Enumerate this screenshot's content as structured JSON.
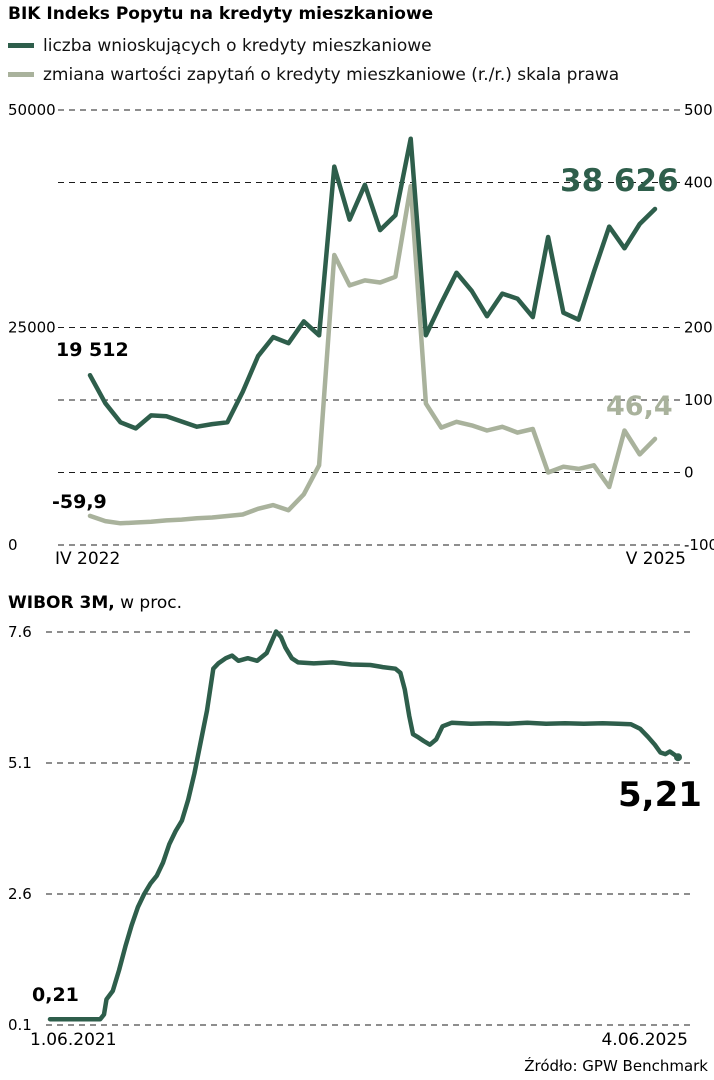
{
  "source": "Źródło: GPW Benchmark",
  "chart_data": [
    {
      "type": "line",
      "title": "BIK Indeks Popytu na kredyty mieszkaniowe",
      "legend": [
        {
          "label": "liczba wnioskujących o kredyty mieszkaniowe",
          "color": "#2e5e4b"
        },
        {
          "label": "zmiana wartości zapytań o kredyty mieszkaniowe (r./r.) skala prawa",
          "color": "#a9b29c"
        }
      ],
      "x_axis": {
        "start": "IV 2022",
        "end": "V 2025"
      },
      "left_axis": {
        "min": 0,
        "max": 50000,
        "ticks": [
          {
            "value": 50000,
            "label": "50000"
          },
          {
            "value": 25000,
            "label": "25000"
          },
          {
            "value": 0,
            "label": "0"
          }
        ]
      },
      "right_axis": {
        "min": -100,
        "max": 500,
        "ticks": [
          {
            "value": 500,
            "label": "500"
          },
          {
            "value": 400,
            "label": "400"
          },
          {
            "value": 200,
            "label": "200"
          },
          {
            "value": 100,
            "label": "100"
          },
          {
            "value": 0,
            "label": "0"
          },
          {
            "value": -100,
            "label": "-100"
          }
        ]
      },
      "series": [
        {
          "name": "liczba wnioskujących o kredyty mieszkaniowe",
          "axis": "left",
          "color": "#2e5e4b",
          "values": [
            19512,
            16300,
            14100,
            13400,
            14900,
            14800,
            14200,
            13600,
            13900,
            14100,
            17600,
            21700,
            23900,
            23200,
            25700,
            24100,
            43500,
            37400,
            41400,
            36200,
            37900,
            46700,
            24100,
            27800,
            31300,
            29200,
            26300,
            28900,
            28300,
            26200,
            35400,
            26700,
            25900,
            31400,
            36600,
            34100,
            36900,
            38626
          ]
        },
        {
          "name": "zmiana wartości zapytań o kredyty mieszkaniowe (r./r.)",
          "axis": "right",
          "color": "#a9b29c",
          "values": [
            -59.9,
            -67,
            -70,
            -69,
            -68,
            -66,
            -65,
            -63,
            -62,
            -60,
            -58,
            -50,
            -45,
            -52,
            -30,
            10,
            300,
            258,
            265,
            262,
            270,
            395,
            95,
            62,
            70,
            65,
            58,
            63,
            55,
            60,
            0,
            8,
            5,
            10,
            -20,
            58,
            25,
            46.4
          ]
        }
      ],
      "annotations": {
        "series1_start": "19 512",
        "series1_end": "38 626",
        "series2_start": "-59,9",
        "series2_end": "46,4"
      }
    },
    {
      "type": "line",
      "title": "WIBOR 3M,",
      "title_suffix": " w proc.",
      "x_axis": {
        "start": "1.06.2021",
        "end": "4.06.2025"
      },
      "y_axis": {
        "min": 0.1,
        "max": 7.6,
        "ticks": [
          {
            "value": 7.6,
            "label": "7.6"
          },
          {
            "value": 5.1,
            "label": "5.1"
          },
          {
            "value": 2.6,
            "label": "2.6"
          },
          {
            "value": 0.1,
            "label": "0.1"
          }
        ]
      },
      "series": [
        {
          "name": "WIBOR 3M",
          "color": "#2e5e4b",
          "points": [
            [
              0,
              0.21
            ],
            [
              0.04,
              0.21
            ],
            [
              0.08,
              0.21
            ],
            [
              0.086,
              0.3
            ],
            [
              0.09,
              0.59
            ],
            [
              0.1,
              0.75
            ],
            [
              0.11,
              1.15
            ],
            [
              0.12,
              1.6
            ],
            [
              0.13,
              2.0
            ],
            [
              0.14,
              2.35
            ],
            [
              0.15,
              2.6
            ],
            [
              0.16,
              2.8
            ],
            [
              0.17,
              2.95
            ],
            [
              0.18,
              3.2
            ],
            [
              0.19,
              3.55
            ],
            [
              0.2,
              3.8
            ],
            [
              0.21,
              4.0
            ],
            [
              0.22,
              4.4
            ],
            [
              0.23,
              4.9
            ],
            [
              0.24,
              5.5
            ],
            [
              0.25,
              6.1
            ],
            [
              0.26,
              6.9
            ],
            [
              0.268,
              7.0
            ],
            [
              0.28,
              7.1
            ],
            [
              0.29,
              7.15
            ],
            [
              0.3,
              7.05
            ],
            [
              0.315,
              7.1
            ],
            [
              0.33,
              7.05
            ],
            [
              0.345,
              7.2
            ],
            [
              0.36,
              7.61
            ],
            [
              0.368,
              7.5
            ],
            [
              0.375,
              7.3
            ],
            [
              0.385,
              7.1
            ],
            [
              0.395,
              7.02
            ],
            [
              0.42,
              7.0
            ],
            [
              0.45,
              7.02
            ],
            [
              0.48,
              6.98
            ],
            [
              0.51,
              6.97
            ],
            [
              0.53,
              6.93
            ],
            [
              0.55,
              6.9
            ],
            [
              0.558,
              6.82
            ],
            [
              0.565,
              6.5
            ],
            [
              0.572,
              6.0
            ],
            [
              0.578,
              5.65
            ],
            [
              0.585,
              5.6
            ],
            [
              0.595,
              5.52
            ],
            [
              0.605,
              5.45
            ],
            [
              0.615,
              5.55
            ],
            [
              0.625,
              5.8
            ],
            [
              0.64,
              5.87
            ],
            [
              0.67,
              5.85
            ],
            [
              0.7,
              5.86
            ],
            [
              0.73,
              5.85
            ],
            [
              0.76,
              5.87
            ],
            [
              0.79,
              5.85
            ],
            [
              0.82,
              5.86
            ],
            [
              0.85,
              5.85
            ],
            [
              0.88,
              5.86
            ],
            [
              0.905,
              5.85
            ],
            [
              0.925,
              5.84
            ],
            [
              0.94,
              5.75
            ],
            [
              0.952,
              5.6
            ],
            [
              0.963,
              5.45
            ],
            [
              0.972,
              5.3
            ],
            [
              0.98,
              5.27
            ],
            [
              0.987,
              5.32
            ],
            [
              1,
              5.21
            ]
          ]
        }
      ],
      "annotations": {
        "start": "0,21",
        "end": "5,21"
      }
    }
  ]
}
